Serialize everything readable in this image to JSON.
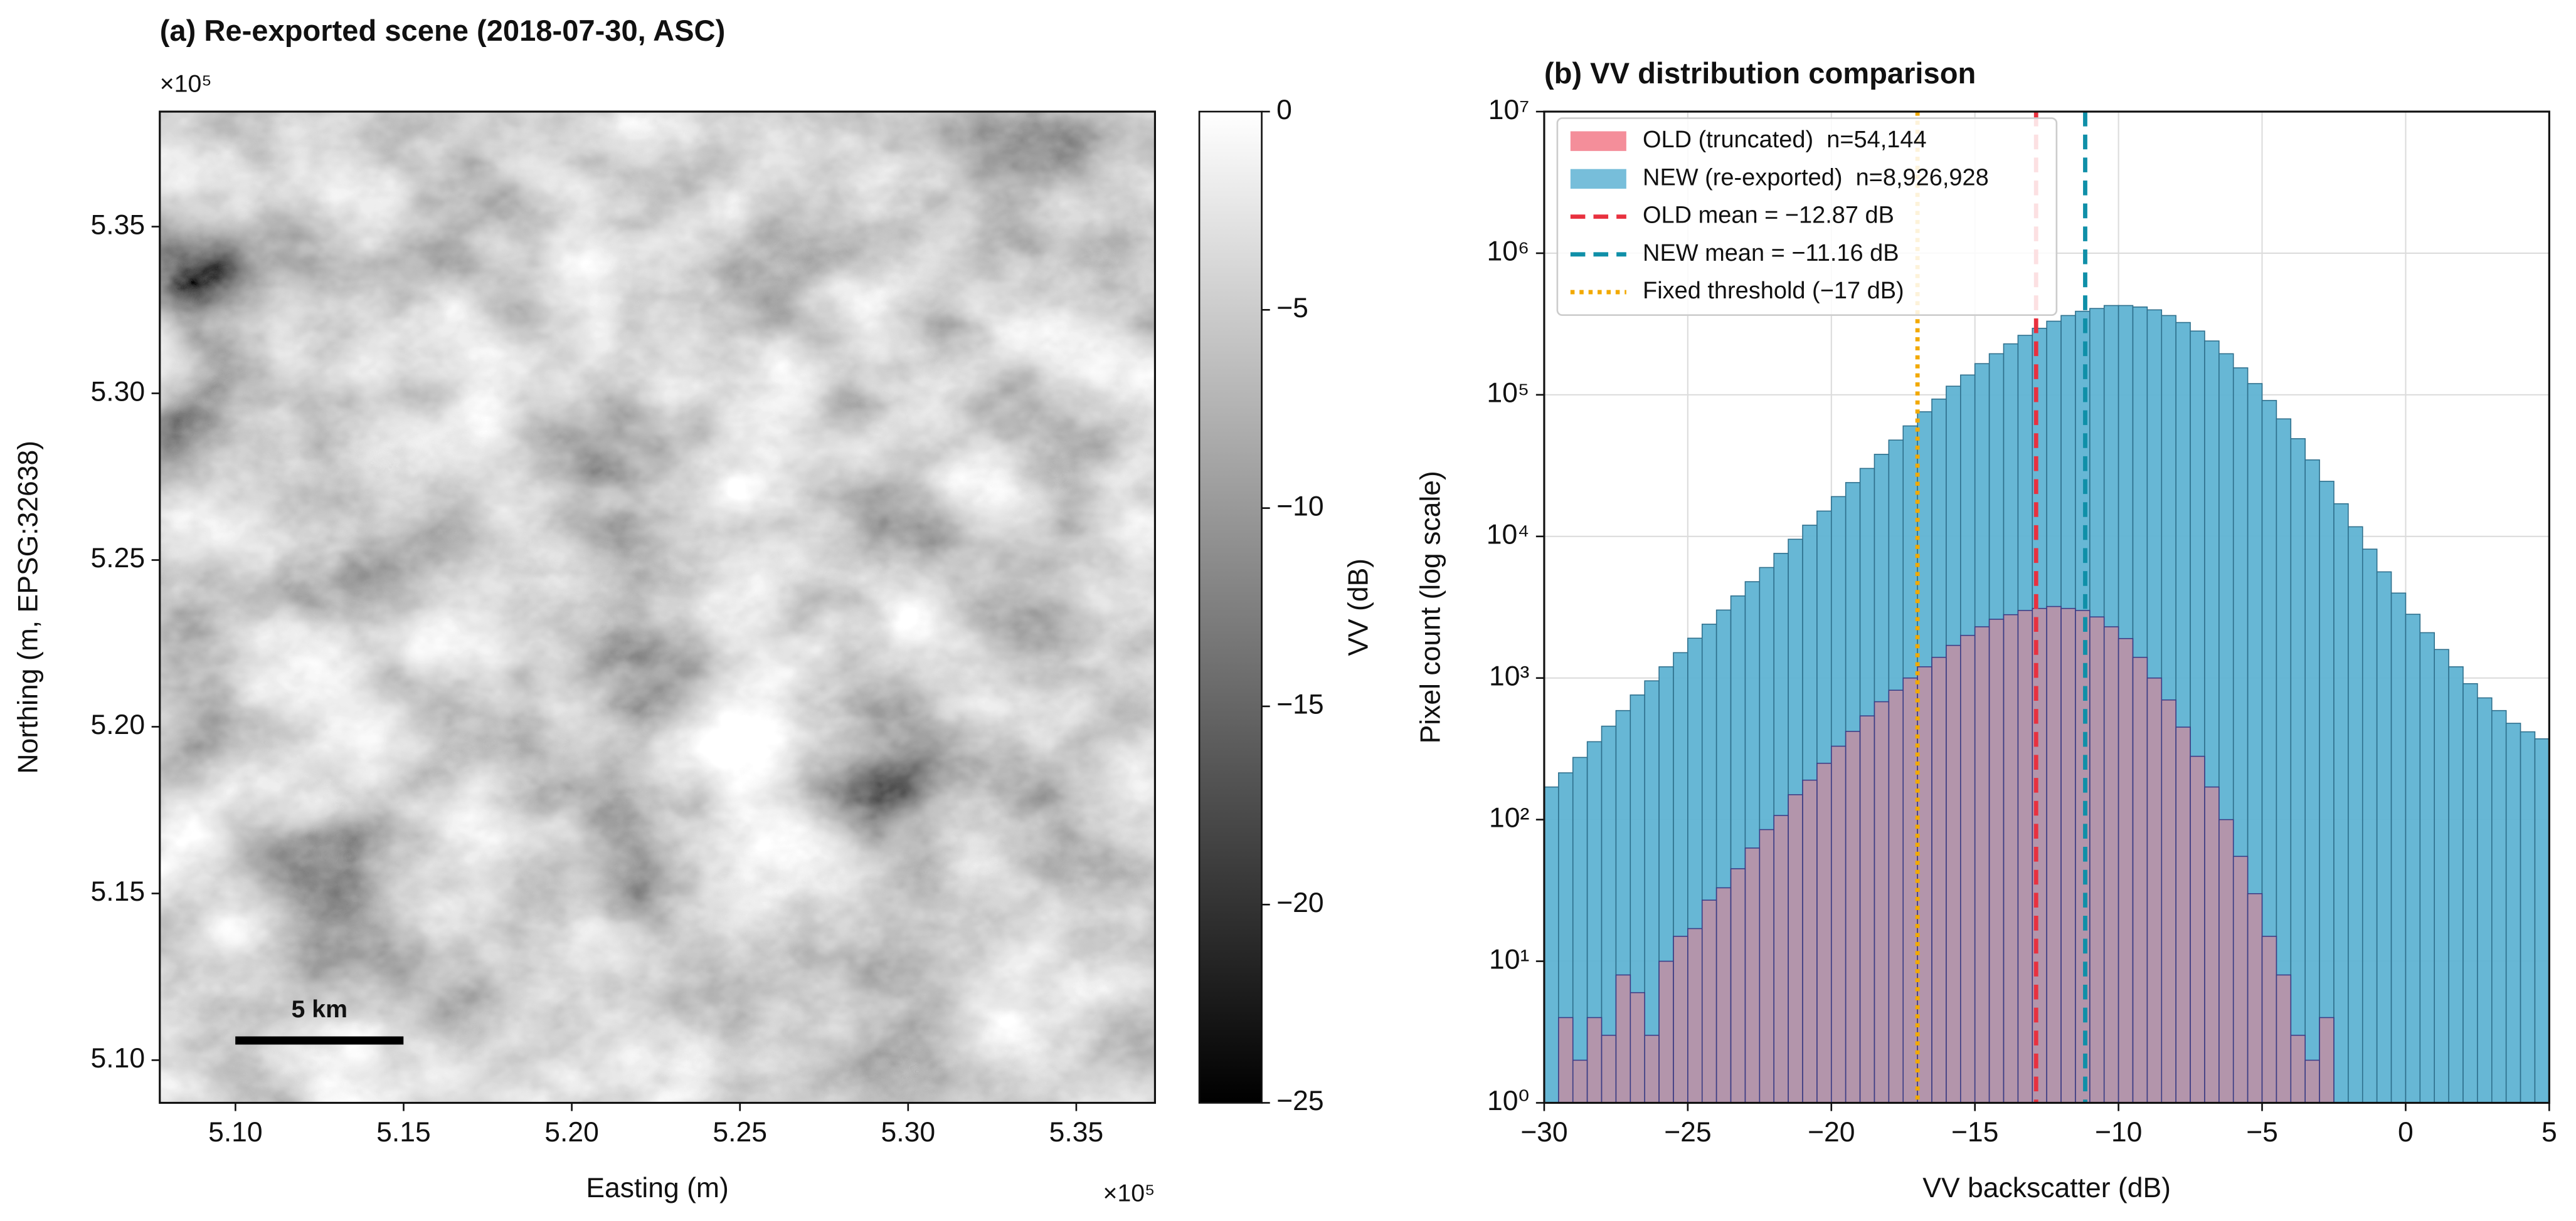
{
  "chart_data": [
    {
      "type": "image",
      "title": "(a) Re-exported scene (2018-07-30, ASC)",
      "xlabel": "Easting (m)",
      "ylabel": "Northing (m, EPSG:32638)",
      "x_offset_label": "×10⁵",
      "y_offset_label": "×10⁵",
      "xlim": [
        507750,
        537340
      ],
      "ylim": [
        508720,
        538450
      ],
      "xticks": [
        {
          "value": 510000,
          "label": "5.10"
        },
        {
          "value": 515000,
          "label": "5.15"
        },
        {
          "value": 520000,
          "label": "5.20"
        },
        {
          "value": 525000,
          "label": "5.25"
        },
        {
          "value": 530000,
          "label": "5.30"
        },
        {
          "value": 535000,
          "label": "5.35"
        }
      ],
      "yticks": [
        {
          "value": 510000,
          "label": "5.10"
        },
        {
          "value": 515000,
          "label": "5.15"
        },
        {
          "value": 520000,
          "label": "5.20"
        },
        {
          "value": 525000,
          "label": "5.25"
        },
        {
          "value": 530000,
          "label": "5.30"
        },
        {
          "value": 535000,
          "label": "5.35"
        }
      ],
      "colorbar": {
        "label": "VV (dB)",
        "colormap": "gray",
        "lim": [
          -25,
          0
        ],
        "ticks": [
          0,
          {
            "value": -5,
            "label": "−5"
          },
          {
            "value": -10,
            "label": "−10"
          },
          {
            "value": -15,
            "label": "−15"
          },
          {
            "value": -20,
            "label": "−20"
          },
          {
            "value": -25,
            "label": "−25"
          }
        ]
      },
      "scalebar": {
        "label": "5 km",
        "length": 5000
      }
    },
    {
      "type": "histogram",
      "title": "(b) VV distribution comparison",
      "xlabel": "VV backscatter (dB)",
      "ylabel": "Pixel count (log scale)",
      "yscale": "log",
      "grid": true,
      "legend": "upper left",
      "xlim": [
        -30,
        5
      ],
      "ylim": [
        1,
        10000000
      ],
      "xticks": [
        {
          "value": -30,
          "label": "−30"
        },
        {
          "value": -25,
          "label": "−25"
        },
        {
          "value": -20,
          "label": "−20"
        },
        {
          "value": -15,
          "label": "−15"
        },
        {
          "value": -10,
          "label": "−10"
        },
        {
          "value": -5,
          "label": "−5"
        },
        0,
        5
      ],
      "yticks": [
        {
          "value": 1,
          "label": "10⁰"
        },
        {
          "value": 10,
          "label": "10¹"
        },
        {
          "value": 100,
          "label": "10²"
        },
        {
          "value": 1000,
          "label": "10³"
        },
        {
          "value": 10000,
          "label": "10⁴"
        },
        {
          "value": 100000,
          "label": "10⁵"
        },
        {
          "value": 1000000,
          "label": "10⁶"
        },
        {
          "value": 10000000,
          "label": "10⁷"
        }
      ],
      "bins": [
        -30,
        -29.5,
        -29,
        -28.5,
        -28,
        -27.5,
        -27,
        -26.5,
        -26,
        -25.5,
        -25,
        -24.5,
        -24,
        -23.5,
        -23,
        -22.5,
        -22,
        -21.5,
        -21,
        -20.5,
        -20,
        -19.5,
        -19,
        -18.5,
        -18,
        -17.5,
        -17,
        -16.5,
        -16,
        -15.5,
        -15,
        -14.5,
        -14,
        -13.5,
        -13,
        -12.5,
        -12,
        -11.5,
        -11,
        -10.5,
        -10,
        -9.5,
        -9,
        -8.5,
        -8,
        -7.5,
        -7,
        -6.5,
        -6,
        -5.5,
        -5,
        -4.5,
        -4,
        -3.5,
        -3,
        -2.5,
        -2,
        -1.5,
        -1,
        -0.5,
        0,
        0.5,
        1,
        1.5,
        2,
        2.5,
        3,
        3.5,
        4,
        4.5,
        5
      ],
      "series": [
        {
          "name": "NEW (re-exported)  n=8,926,928",
          "color": "#5fb3d3",
          "values": [
            170,
            214,
            275,
            355,
            457,
            589,
            759,
            955,
            1200,
            1510,
            1910,
            2400,
            3020,
            3800,
            4790,
            6030,
            7590,
            9550,
            12000,
            15100,
            19100,
            24000,
            30200,
            38000,
            47900,
            60300,
            75900,
            93300,
            115000,
            138000,
            166000,
            195000,
            229000,
            263000,
            295000,
            331000,
            363000,
            389000,
            407000,
            427000,
            427000,
            417000,
            398000,
            363000,
            324000,
            282000,
            240000,
            195000,
            155000,
            120000,
            91200,
            67600,
            49000,
            34700,
            24500,
            17000,
            11700,
            8130,
            5620,
            3980,
            2820,
            2090,
            1590,
            1200,
            912,
            724,
            589,
            479,
            417,
            372
          ]
        },
        {
          "name": "OLD (truncated)  n=54,144",
          "color": "#f27a88",
          "values": [
            1,
            4,
            2,
            4,
            3,
            8,
            6,
            3,
            10,
            15,
            17,
            27,
            33,
            45,
            63,
            85,
            107,
            150,
            190,
            250,
            330,
            420,
            540,
            680,
            820,
            1000,
            1200,
            1400,
            1700,
            2000,
            2300,
            2600,
            2800,
            3000,
            3100,
            3200,
            3100,
            3000,
            2700,
            2300,
            1900,
            1400,
            1000,
            700,
            450,
            280,
            170,
            100,
            55,
            30,
            15,
            8,
            3,
            2,
            4,
            0,
            0,
            0,
            0,
            0,
            0,
            0,
            0,
            0,
            0,
            0,
            0,
            0,
            0,
            0
          ]
        }
      ],
      "lines": [
        {
          "name": "OLD mean = −12.87 dB",
          "value": -12.87,
          "color": "#e8313f",
          "style": "dashed"
        },
        {
          "name": "NEW mean = −11.16 dB",
          "value": -11.16,
          "color": "#0f8fa8",
          "style": "dashed"
        },
        {
          "name": "Fixed threshold (−17 dB)",
          "value": -17,
          "color": "#f2a900",
          "style": "dotted"
        }
      ]
    }
  ]
}
